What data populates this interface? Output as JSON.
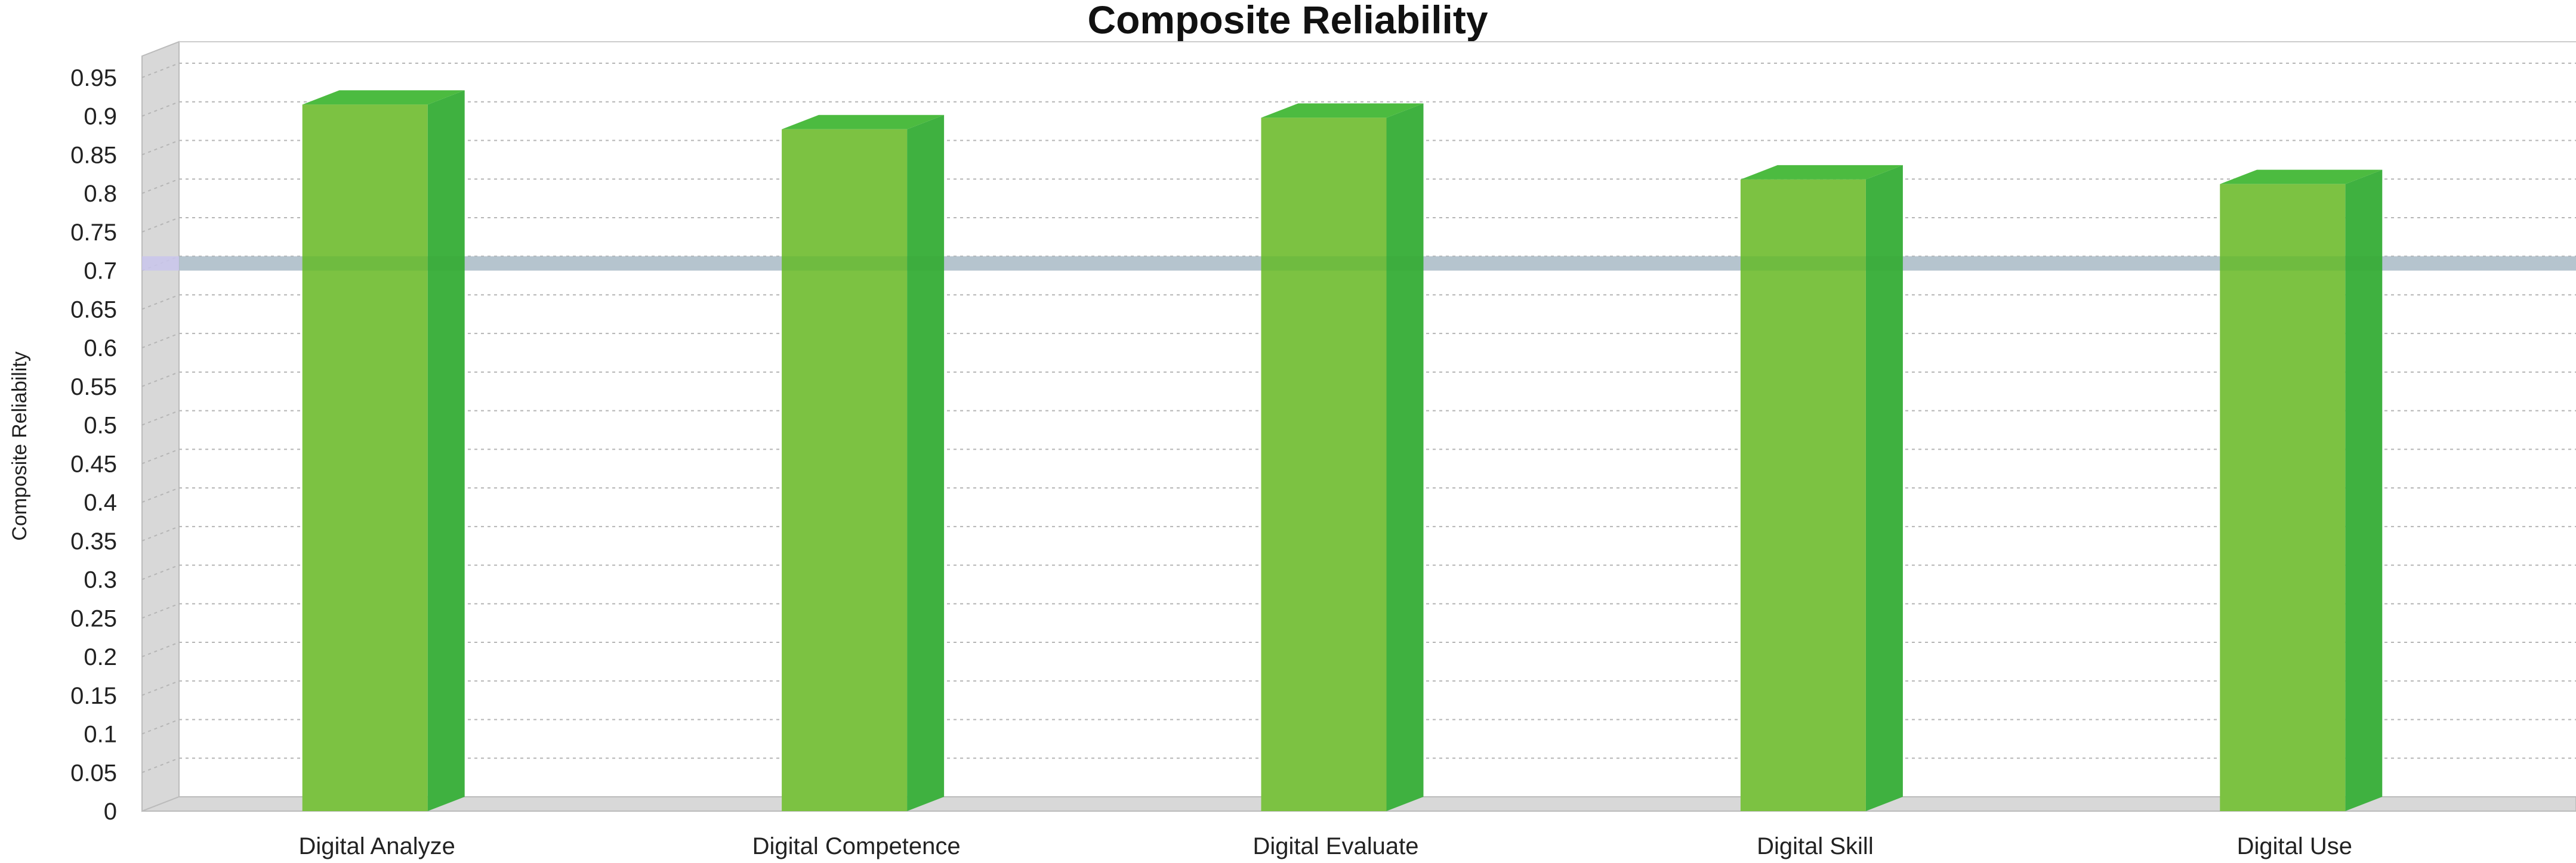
{
  "chart_data": {
    "type": "bar",
    "title": "Composite Reliability",
    "xlabel": "",
    "ylabel": "Composite Reliability",
    "categories": [
      "Digital Analyze",
      "Digital Competence",
      "Digital Evaluate",
      "Digital Skill",
      "Digital Use"
    ],
    "values": [
      0.915,
      0.883,
      0.898,
      0.818,
      0.812
    ],
    "ylim": [
      0,
      0.95
    ],
    "yticks": [
      "0",
      "0.05",
      "0.1",
      "0.15",
      "0.2",
      "0.25",
      "0.3",
      "0.35",
      "0.4",
      "0.45",
      "0.5",
      "0.55",
      "0.6",
      "0.65",
      "0.7",
      "0.75",
      "0.8",
      "0.85",
      "0.9",
      "0.95"
    ],
    "threshold": 0.7,
    "grid": true,
    "legend": "none",
    "colors": {
      "bar_front": "#7cc242",
      "bar_side": "#3fb140",
      "bar_top": "#4cbb40",
      "threshold_line": "#c9c6ec",
      "grid": "#b5b5b5",
      "wall": "#d8d8d8"
    }
  }
}
